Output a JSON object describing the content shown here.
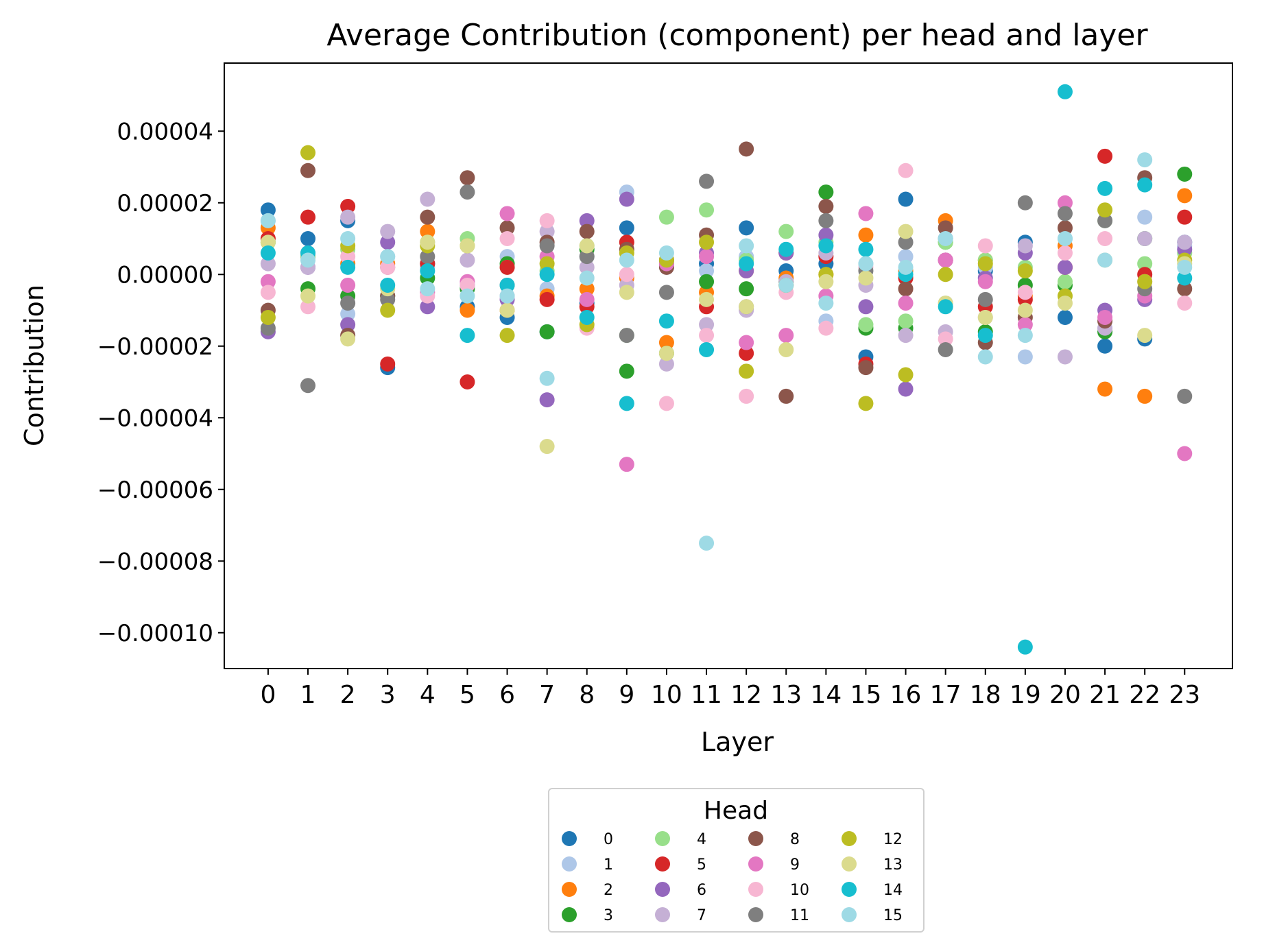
{
  "chart_data": {
    "type": "scatter",
    "title": "Average Contribution (component) per head and layer",
    "xlabel": "Layer",
    "ylabel": "Contribution",
    "x_categories": [
      "0",
      "1",
      "2",
      "3",
      "4",
      "5",
      "6",
      "7",
      "8",
      "9",
      "10",
      "11",
      "12",
      "13",
      "14",
      "15",
      "16",
      "17",
      "18",
      "19",
      "20",
      "21",
      "22",
      "23"
    ],
    "xlim": [
      -1.1,
      24.2
    ],
    "ylim": [
      -0.00011,
      5.9e-05
    ],
    "yticks": [
      4e-05,
      2e-05,
      0.0,
      -2e-05,
      -4e-05,
      -6e-05,
      -8e-05,
      -0.0001
    ],
    "ytick_labels": [
      "0.00004",
      "0.00002",
      "0.00000",
      "−0.00002",
      "−0.00004",
      "−0.00006",
      "−0.00008",
      "−0.00010"
    ],
    "grid": false,
    "legend": {
      "title": "Head",
      "placement": "below",
      "columns": 4
    },
    "series": [
      {
        "name": "0",
        "color": "#1f77b4",
        "values": [
          1.8e-05,
          1e-05,
          1.5e-05,
          -2.6e-05,
          3e-06,
          -9e-06,
          -1.2e-05,
          -1.6e-05,
          -8e-06,
          1.3e-05,
          4e-06,
          3e-06,
          1.3e-05,
          1e-06,
          3e-06,
          -2.3e-05,
          2.1e-05,
          1e-05,
          1e-06,
          9e-06,
          -1.2e-05,
          -2e-05,
          -1.8e-05,
          9e-06
        ]
      },
      {
        "name": "1",
        "color": "#aec7e8",
        "values": [
          1.5e-05,
          5e-06,
          -1.1e-05,
          5e-06,
          2e-06,
          -3e-06,
          5e-06,
          -4e-06,
          5e-06,
          2.3e-05,
          2e-06,
          1e-06,
          5e-06,
          -2e-06,
          -1.3e-05,
          3e-06,
          5e-06,
          -8e-06,
          2e-06,
          -2.3e-05,
          1e-05,
          -1.5e-05,
          1.6e-05,
          8e-06
        ]
      },
      {
        "name": "2",
        "color": "#ff7f0e",
        "values": [
          1.3e-05,
          5e-06,
          3e-06,
          3e-06,
          1.2e-05,
          -1e-05,
          -1e-05,
          -6e-06,
          -4e-06,
          -1e-06,
          -1.9e-05,
          -5e-06,
          1e-06,
          -1e-06,
          0.0,
          1.1e-05,
          1e-06,
          1.5e-05,
          4e-06,
          -6e-06,
          8e-06,
          -3.2e-05,
          -3.4e-05,
          2.2e-05
        ]
      },
      {
        "name": "3",
        "color": "#2ca02c",
        "values": [
          9e-06,
          -4e-06,
          -6e-06,
          -6e-06,
          -1e-06,
          -4e-06,
          3e-06,
          -1.6e-05,
          7e-06,
          -2.7e-05,
          -2.2e-05,
          -2e-06,
          -4e-06,
          -2e-06,
          2.3e-05,
          -1.5e-05,
          -1.5e-05,
          9e-06,
          -1.6e-05,
          -3e-06,
          -3e-06,
          -1.6e-05,
          1e-05,
          2.8e-05
        ]
      },
      {
        "name": "4",
        "color": "#98df8a",
        "values": [
          9e-06,
          5e-06,
          7e-06,
          2e-06,
          9e-06,
          1e-05,
          2e-06,
          1e-06,
          8e-06,
          -1.7e-05,
          1.6e-05,
          1.8e-05,
          4e-06,
          1.2e-05,
          9e-06,
          -1.4e-05,
          -1.3e-05,
          9e-06,
          4e-06,
          2e-06,
          -2e-06,
          1.5e-05,
          3e-06,
          6e-06
        ]
      },
      {
        "name": "5",
        "color": "#d62728",
        "values": [
          1e-05,
          1.6e-05,
          1.9e-05,
          -2.5e-05,
          3e-06,
          -3e-05,
          2e-06,
          -7e-06,
          -9e-06,
          9e-06,
          4e-06,
          -9e-06,
          -2.2e-05,
          6e-06,
          5e-06,
          -2.5e-05,
          -1e-06,
          4e-06,
          -9e-06,
          -7e-06,
          2e-06,
          3.3e-05,
          0.0,
          1.6e-05
        ]
      },
      {
        "name": "6",
        "color": "#9467bd",
        "values": [
          -1.6e-05,
          2e-06,
          -1.4e-05,
          9e-06,
          -9e-06,
          -3e-06,
          -7e-06,
          -3.5e-05,
          1.5e-05,
          2.1e-05,
          3e-06,
          6e-06,
          1e-06,
          6e-06,
          1.1e-05,
          -9e-06,
          -3.2e-05,
          4e-06,
          -1e-06,
          6e-06,
          2e-06,
          -1e-05,
          -7e-06,
          7e-06
        ]
      },
      {
        "name": "7",
        "color": "#c5b0d5",
        "values": [
          3e-06,
          2e-06,
          1.6e-05,
          1.2e-05,
          2.1e-05,
          4e-06,
          -6e-06,
          1.2e-05,
          2e-06,
          -3e-06,
          -2.5e-05,
          -1.4e-05,
          -1e-05,
          -2e-06,
          6e-06,
          -3e-06,
          -1.7e-05,
          -1.6e-05,
          -1.2e-05,
          8e-06,
          -2.3e-05,
          -1.5e-05,
          1e-05,
          9e-06
        ]
      },
      {
        "name": "8",
        "color": "#8c564b",
        "values": [
          -1e-05,
          2.9e-05,
          -1.7e-05,
          -6e-06,
          1.6e-05,
          2.7e-05,
          1.3e-05,
          9e-06,
          1.2e-05,
          7e-06,
          2e-06,
          1.1e-05,
          3.5e-05,
          -3.4e-05,
          1.9e-05,
          -2.6e-05,
          -4e-06,
          1.3e-05,
          -1.9e-05,
          -1.2e-05,
          1.3e-05,
          -1.3e-05,
          2.7e-05,
          -4e-06
        ]
      },
      {
        "name": "9",
        "color": "#e377c2",
        "values": [
          -2e-06,
          6e-06,
          -3e-06,
          2e-06,
          -5e-06,
          -2e-06,
          1.7e-05,
          5e-06,
          -7e-06,
          -5.3e-05,
          3e-06,
          5e-06,
          -1.9e-05,
          -1.7e-05,
          -6e-06,
          1.7e-05,
          -8e-06,
          4e-06,
          -2e-06,
          -1.4e-05,
          2e-05,
          -1.2e-05,
          -6e-06,
          -5e-05
        ]
      },
      {
        "name": "10",
        "color": "#f7b6d2",
        "values": [
          -5e-06,
          -9e-06,
          5e-06,
          2e-06,
          -6e-06,
          -3e-06,
          1e-05,
          1.5e-05,
          -1.5e-05,
          0.0,
          -3.6e-05,
          -1.7e-05,
          -3.4e-05,
          -5e-06,
          -1.5e-05,
          2e-06,
          2.9e-05,
          -1.8e-05,
          8e-06,
          -5e-06,
          6e-06,
          1e-05,
          -2e-06,
          -8e-06
        ]
      },
      {
        "name": "11",
        "color": "#7f7f7f",
        "values": [
          -1.5e-05,
          -3.1e-05,
          -8e-06,
          -7e-06,
          5e-06,
          2.3e-05,
          -3e-06,
          8e-06,
          5e-06,
          -1.7e-05,
          -5e-06,
          2.6e-05,
          -9e-06,
          -3e-06,
          1.5e-05,
          1e-06,
          9e-06,
          -2.1e-05,
          -7e-06,
          2e-05,
          1.7e-05,
          1.5e-05,
          -4e-06,
          -3.4e-05
        ]
      },
      {
        "name": "12",
        "color": "#bcbd22",
        "values": [
          -1.2e-05,
          3.4e-05,
          8e-06,
          -1e-05,
          8e-06,
          8e-06,
          -1.7e-05,
          3e-06,
          -1.4e-05,
          6e-06,
          4e-06,
          9e-06,
          -2.7e-05,
          -3e-06,
          0.0,
          -3.6e-05,
          -2.8e-05,
          0.0,
          3e-06,
          1e-06,
          -6e-06,
          1.8e-05,
          -2e-06,
          4e-06
        ]
      },
      {
        "name": "13",
        "color": "#dbdb8d",
        "values": [
          9e-06,
          -6e-06,
          -1.8e-05,
          -4e-06,
          9e-06,
          8e-06,
          -1e-05,
          -4.8e-05,
          8e-06,
          -5e-06,
          -2.2e-05,
          -7e-06,
          -9e-06,
          -2.1e-05,
          -2e-06,
          -1e-06,
          1.2e-05,
          -8e-06,
          -1.2e-05,
          -1e-05,
          -8e-06,
          4e-06,
          -1.7e-05,
          3e-06
        ]
      },
      {
        "name": "14",
        "color": "#17becf",
        "values": [
          6e-06,
          6e-06,
          2e-06,
          -3e-06,
          1e-06,
          -1.7e-05,
          -3e-06,
          0.0,
          -1.2e-05,
          -3.6e-05,
          -1.3e-05,
          -2.1e-05,
          3e-06,
          7e-06,
          8e-06,
          7e-06,
          0.0,
          -9e-06,
          -1.7e-05,
          -0.000104,
          5.1e-05,
          2.4e-05,
          2.5e-05,
          -1e-06
        ]
      },
      {
        "name": "15",
        "color": "#9edae5",
        "values": [
          1.5e-05,
          4e-06,
          1e-05,
          5e-06,
          -4e-06,
          -6e-06,
          -6e-06,
          -2.9e-05,
          -1e-06,
          4e-06,
          6e-06,
          -7.5e-05,
          8e-06,
          -3e-06,
          -8e-06,
          3e-06,
          2e-06,
          1e-05,
          -2.3e-05,
          -1.7e-05,
          1e-05,
          4e-06,
          3.2e-05,
          2e-06
        ]
      }
    ]
  }
}
